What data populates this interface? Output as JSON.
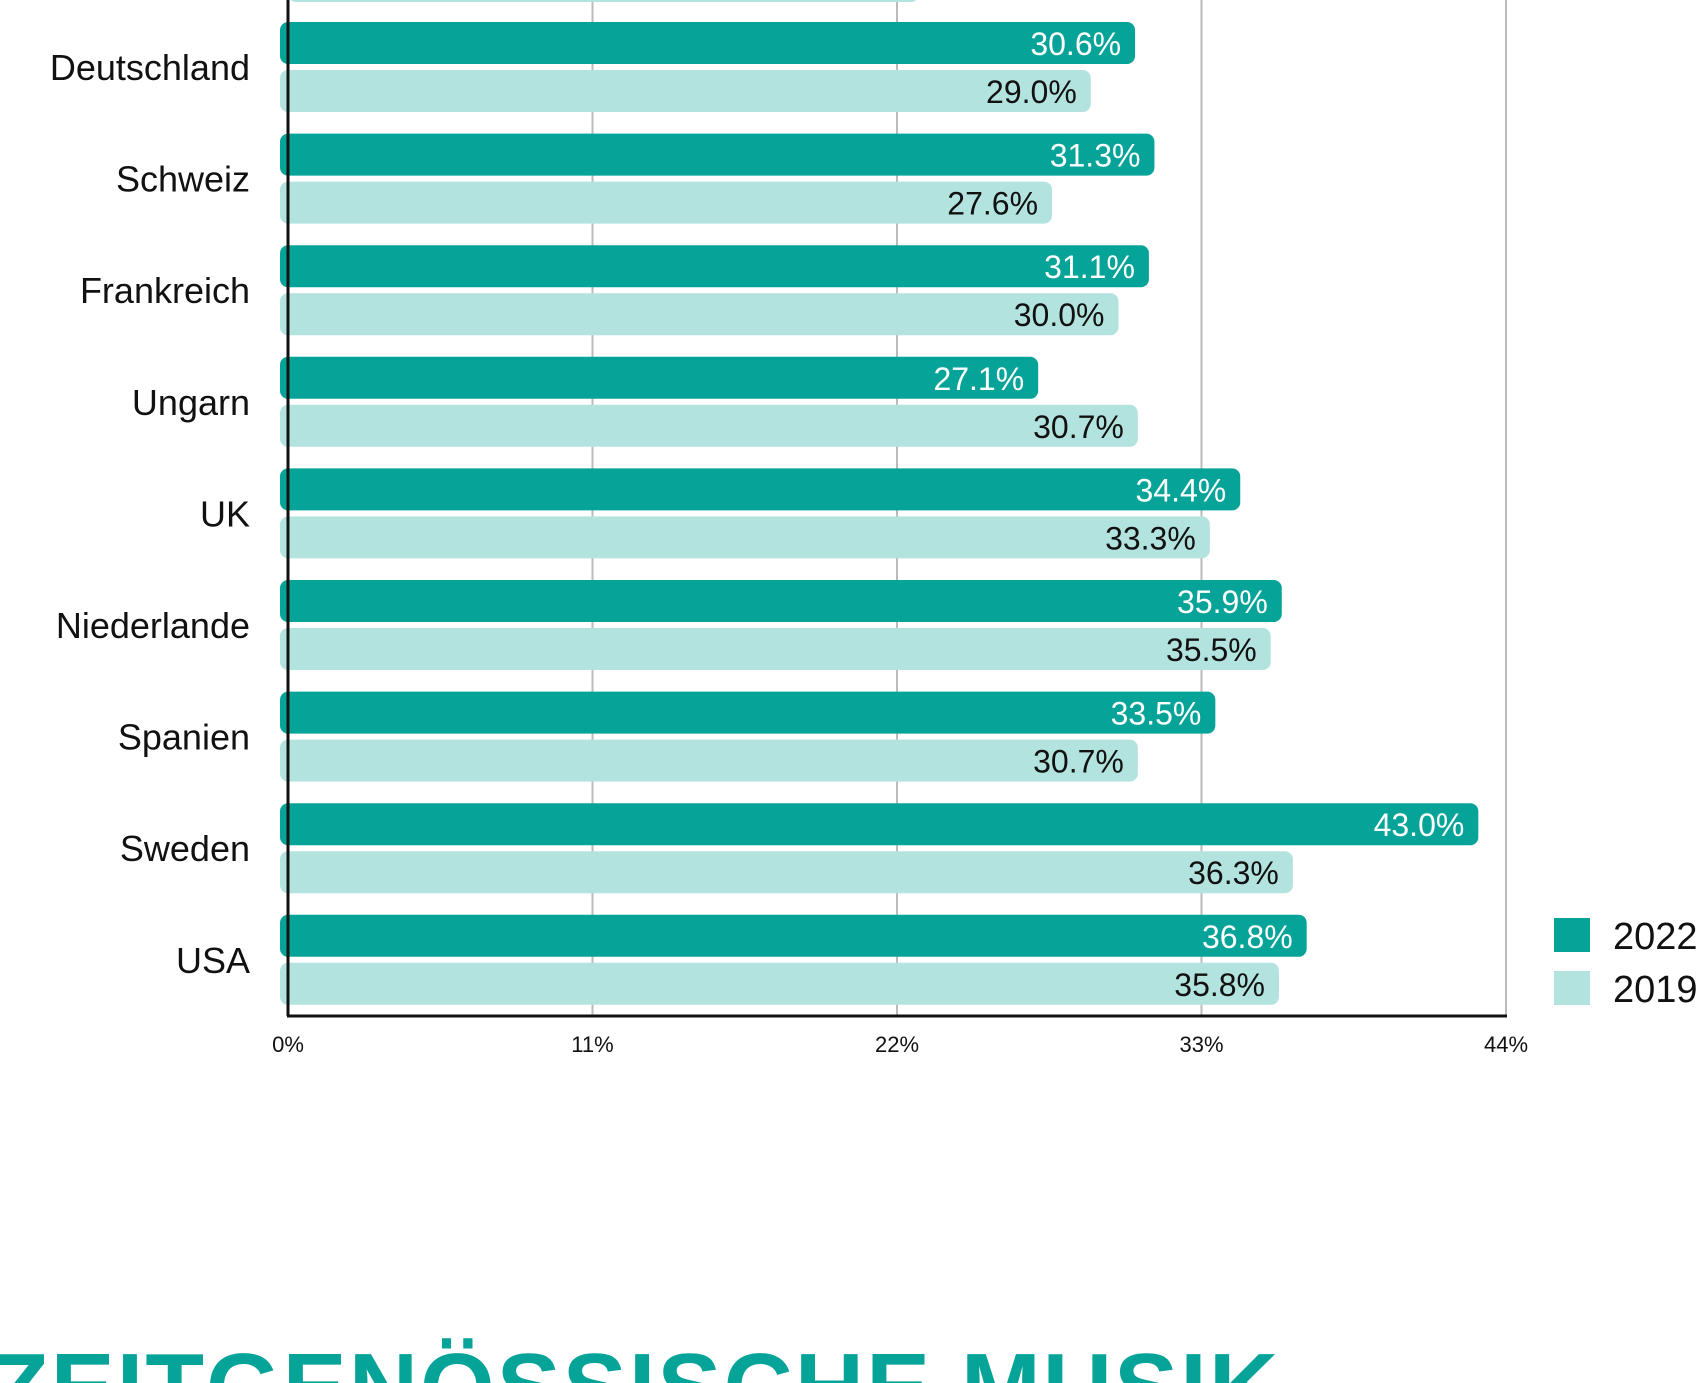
{
  "colors": {
    "series_2022": "#06A398",
    "series_2019": "#B3E3DF",
    "grid": "#BBBBBB",
    "axis": "#111111",
    "label_on_dark": "#ffffff",
    "label_on_light": "#111111"
  },
  "heading": {
    "text": "ZEITGENÖSSISCHE MUSIK"
  },
  "chart_data": {
    "type": "bar",
    "orientation": "horizontal",
    "categories": [
      "Deutschland",
      "Schweiz",
      "Frankreich",
      "Ungarn",
      "UK",
      "Niederlande",
      "Spanien",
      "Sweden",
      "USA"
    ],
    "series": [
      {
        "name": "2022",
        "values": [
          30.6,
          31.3,
          31.1,
          27.1,
          34.4,
          35.9,
          33.5,
          43.0,
          36.8
        ],
        "labels": [
          "30.6%",
          "31.3%",
          "31.1%",
          "27.1%",
          "34.4%",
          "35.9%",
          "33.5%",
          "43.0%",
          "36.8%"
        ]
      },
      {
        "name": "2019",
        "values": [
          29.0,
          27.6,
          30.0,
          30.7,
          33.3,
          35.5,
          30.7,
          36.3,
          35.8
        ],
        "labels": [
          "29.0%",
          "27.6%",
          "30.0%",
          "30.7%",
          "33.3%",
          "35.5%",
          "30.7%",
          "36.3%",
          "35.8%"
        ]
      }
    ],
    "xlim": [
      0,
      44
    ],
    "ticks": [
      0,
      11,
      22,
      33,
      44
    ],
    "tick_labels": [
      "0%",
      "11%",
      "22%",
      "33%",
      "44%"
    ],
    "grid": true,
    "legend": "bottom-right"
  }
}
